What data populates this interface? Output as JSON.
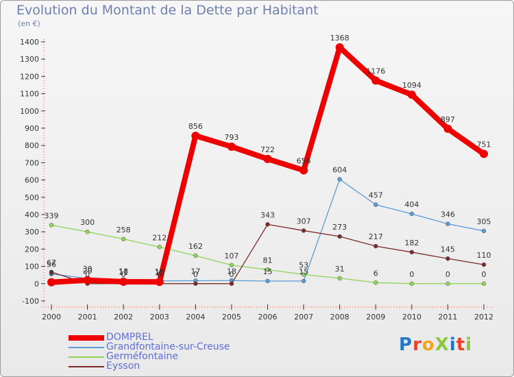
{
  "title": "Evolution du Montant de la Dette par Habitant",
  "unit": "(en €)",
  "logo": "ProXiti",
  "colors": {
    "DOMPREL": "#ee0000",
    "Grandfontaine-sur-Creuse": "#5b9bd5",
    "Germéfontaine": "#8fd45a",
    "Eysson": "#7a2a2a"
  },
  "chart_data": {
    "type": "line",
    "x": [
      "2000",
      "2001",
      "2002",
      "2003",
      "2004",
      "2005",
      "2006",
      "2007",
      "2008",
      "2009",
      "2010",
      "2011",
      "2012"
    ],
    "ylim": [
      -100,
      1400
    ],
    "yticks": [
      "-100",
      "0",
      "100",
      "200",
      "300",
      "400",
      "500",
      "600",
      "700",
      "800",
      "900",
      "1000",
      "1100",
      "1200",
      "1300",
      "1400"
    ],
    "grid": false,
    "legend_position": "bottom-left",
    "series": [
      {
        "name": "DOMPREL",
        "values": [
          8,
          20,
          11,
          10,
          856,
          793,
          722,
          656,
          1368,
          1176,
          1094,
          897,
          751
        ],
        "labels": [
          "8",
          "20",
          "11",
          "10",
          "856",
          "793",
          "722",
          "656",
          "1368",
          "1176",
          "1094",
          "897",
          "751"
        ]
      },
      {
        "name": "Grandfontaine-sur-Creuse",
        "values": [
          56,
          30,
          18,
          16,
          17,
          18,
          15,
          15,
          604,
          457,
          404,
          346,
          305
        ],
        "labels": [
          "56",
          "30",
          "18",
          "16",
          "17",
          "18",
          "15",
          "15",
          "604",
          "457",
          "404",
          "346",
          "305"
        ]
      },
      {
        "name": "Germéfontaine",
        "values": [
          339,
          300,
          258,
          212,
          162,
          107,
          81,
          53,
          31,
          6,
          0,
          0,
          0
        ],
        "labels": [
          "339",
          "300",
          "258",
          "212",
          "162",
          "107",
          "81",
          "53",
          "31",
          "6",
          "0",
          "0",
          "0"
        ]
      },
      {
        "name": "Eysson",
        "values": [
          67,
          0,
          0,
          0,
          0,
          0,
          343,
          307,
          273,
          217,
          182,
          145,
          110
        ],
        "labels": [
          "67",
          "0",
          "0",
          "0",
          "0",
          "0",
          "343",
          "307",
          "273",
          "217",
          "182",
          "145",
          "110"
        ]
      }
    ]
  }
}
